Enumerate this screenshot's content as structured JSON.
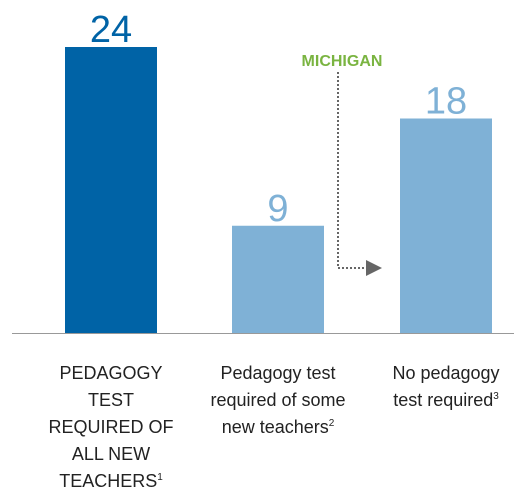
{
  "chart_data": {
    "type": "bar",
    "categories": [
      "PEDAGOGY TEST REQUIRED OF ALL NEW TEACHERS",
      "Pedagogy test required of some new teachers",
      "No pedagogy test required"
    ],
    "footnotes": [
      "1",
      "2",
      "3"
    ],
    "values": [
      24,
      9,
      18
    ],
    "colors": [
      "#0063a6",
      "#7fb1d6",
      "#7fb1d6"
    ],
    "ylim": [
      0,
      24
    ],
    "annotation": {
      "text": "MICHIGAN",
      "color": "#7ab441"
    }
  }
}
